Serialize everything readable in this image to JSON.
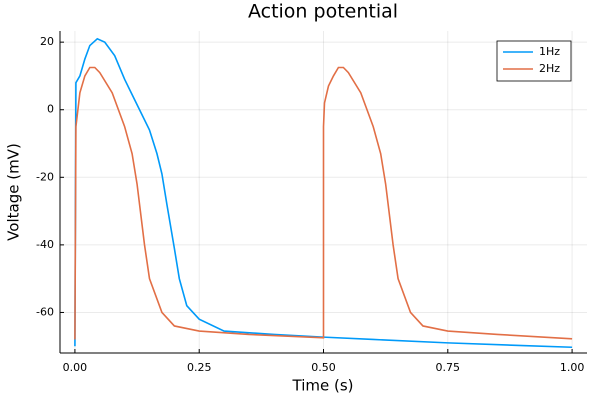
{
  "chart_data": {
    "type": "line",
    "title": "Action potential",
    "x_label": "Time (s)",
    "y_label": "Voltage (mV)",
    "xlim": [
      -0.03,
      1.03
    ],
    "ylim": [
      -72,
      23.3
    ],
    "xticks": [
      {
        "value": 0,
        "label": "0.00"
      },
      {
        "value": 0.25,
        "label": "0.25"
      },
      {
        "value": 0.5,
        "label": "0.50"
      },
      {
        "value": 0.75,
        "label": "0.75"
      },
      {
        "value": 1,
        "label": "1.00"
      }
    ],
    "yticks": [
      20,
      0,
      -20,
      -40,
      -60
    ],
    "grid": true,
    "legend": "top-right",
    "series": [
      {
        "name": "1Hz",
        "color": "#009af9",
        "x": [
          0,
          0.002,
          0.01,
          0.02,
          0.03,
          0.045,
          0.06,
          0.08,
          0.1,
          0.12,
          0.15,
          0.165,
          0.175,
          0.185,
          0.2,
          0.21,
          0.225,
          0.25,
          0.3,
          0.4,
          0.5,
          0.6,
          0.75,
          0.9,
          1.0
        ],
        "values": [
          -70,
          8,
          10,
          15,
          19,
          21,
          20,
          16,
          9,
          3,
          -6,
          -13,
          -19,
          -28,
          -41,
          -50,
          -58,
          -62,
          -65.5,
          -66.5,
          -67.3,
          -68,
          -69,
          -69.8,
          -70.3
        ]
      },
      {
        "name": "2Hz",
        "color": "#e26f46",
        "x": [
          0,
          0.002,
          0.01,
          0.02,
          0.03,
          0.04,
          0.05,
          0.075,
          0.1,
          0.115,
          0.125,
          0.14,
          0.15,
          0.175,
          0.2,
          0.25,
          0.35,
          0.5,
          0.5,
          0.502,
          0.51,
          0.52,
          0.53,
          0.54,
          0.55,
          0.575,
          0.6,
          0.615,
          0.625,
          0.64,
          0.65,
          0.675,
          0.7,
          0.75,
          0.85,
          1.0
        ],
        "values": [
          -68,
          -5,
          5,
          10,
          12.5,
          12.5,
          11,
          5,
          -5,
          -13,
          -22,
          -40,
          -50,
          -60,
          -64,
          -65.5,
          -66.5,
          -67.5,
          -5,
          2,
          7,
          10,
          12.5,
          12.5,
          11,
          5,
          -5,
          -13,
          -22,
          -40,
          -50,
          -60,
          -64,
          -65.5,
          -66.5,
          -67.8
        ]
      }
    ]
  }
}
